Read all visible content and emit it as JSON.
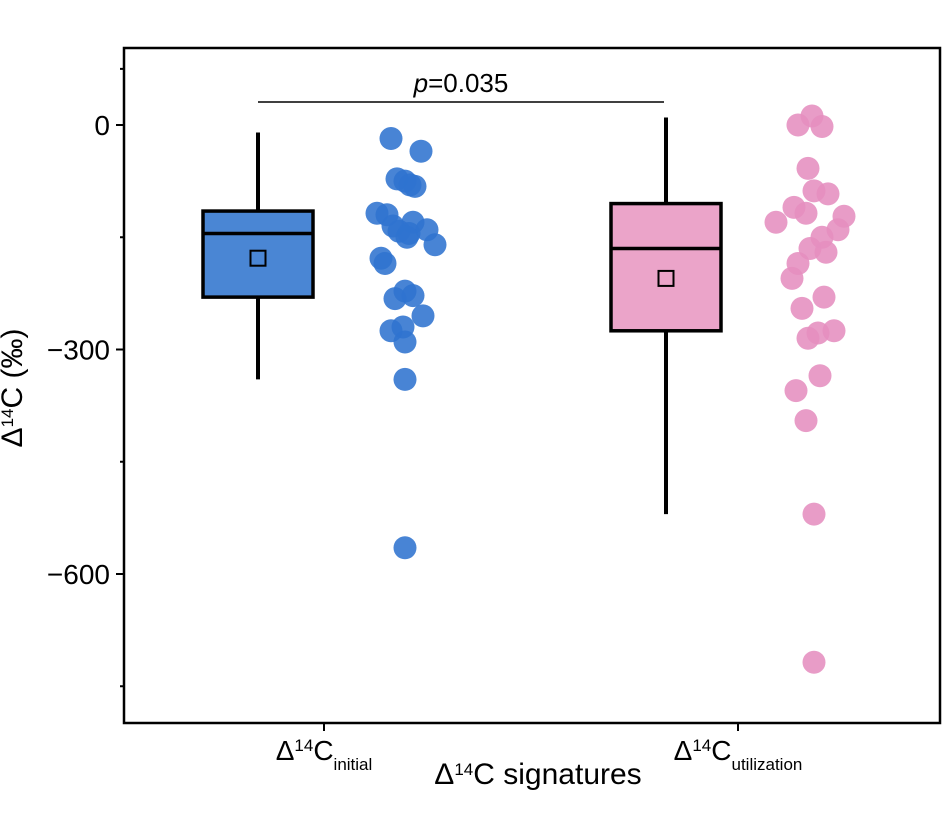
{
  "chart_data": {
    "type": "box",
    "ylabel_parts": {
      "prefix": "Δ",
      "sup": "14",
      "main": "C (‰)"
    },
    "xlabel_parts": {
      "prefix": "Δ",
      "sup": "14",
      "main": "C signatures"
    },
    "ylim": [
      -800,
      100
    ],
    "yticks": [
      0,
      -300,
      -600
    ],
    "ytick_labels": [
      "0",
      "−300",
      "−600"
    ],
    "annotation": {
      "p_label": "p",
      "value": "=0.035"
    },
    "groups": [
      {
        "label_parts": {
          "prefix": "Δ",
          "sup": "14",
          "main": "C",
          "sub": "initial"
        },
        "color": "#4a86d4",
        "point_color": "#2f73cf",
        "box": {
          "whisker_low": -340,
          "q1": -230,
          "median": -145,
          "q3": -115,
          "whisker_high": -10,
          "mean": -178
        },
        "points": [
          -18,
          -35,
          -72,
          -75,
          -80,
          -82,
          -118,
          -120,
          -130,
          -135,
          -140,
          -142,
          -145,
          -150,
          -160,
          -178,
          -185,
          -222,
          -228,
          -232,
          -255,
          -270,
          -275,
          -290,
          -340,
          -565
        ]
      },
      {
        "label_parts": {
          "prefix": "Δ",
          "sup": "14",
          "main": "C",
          "sub": "utilization"
        },
        "color": "#eba4c9",
        "point_color": "#e58ebf",
        "box": {
          "whisker_low": -520,
          "q1": -275,
          "median": -165,
          "q3": -105,
          "whisker_high": 10,
          "mean": -205
        },
        "points": [
          12,
          0,
          -2,
          -58,
          -88,
          -92,
          -110,
          -118,
          -122,
          -130,
          -140,
          -150,
          -165,
          -170,
          -185,
          -205,
          -230,
          -245,
          -275,
          -278,
          -285,
          -335,
          -355,
          -395,
          -520,
          -718
        ]
      }
    ]
  }
}
